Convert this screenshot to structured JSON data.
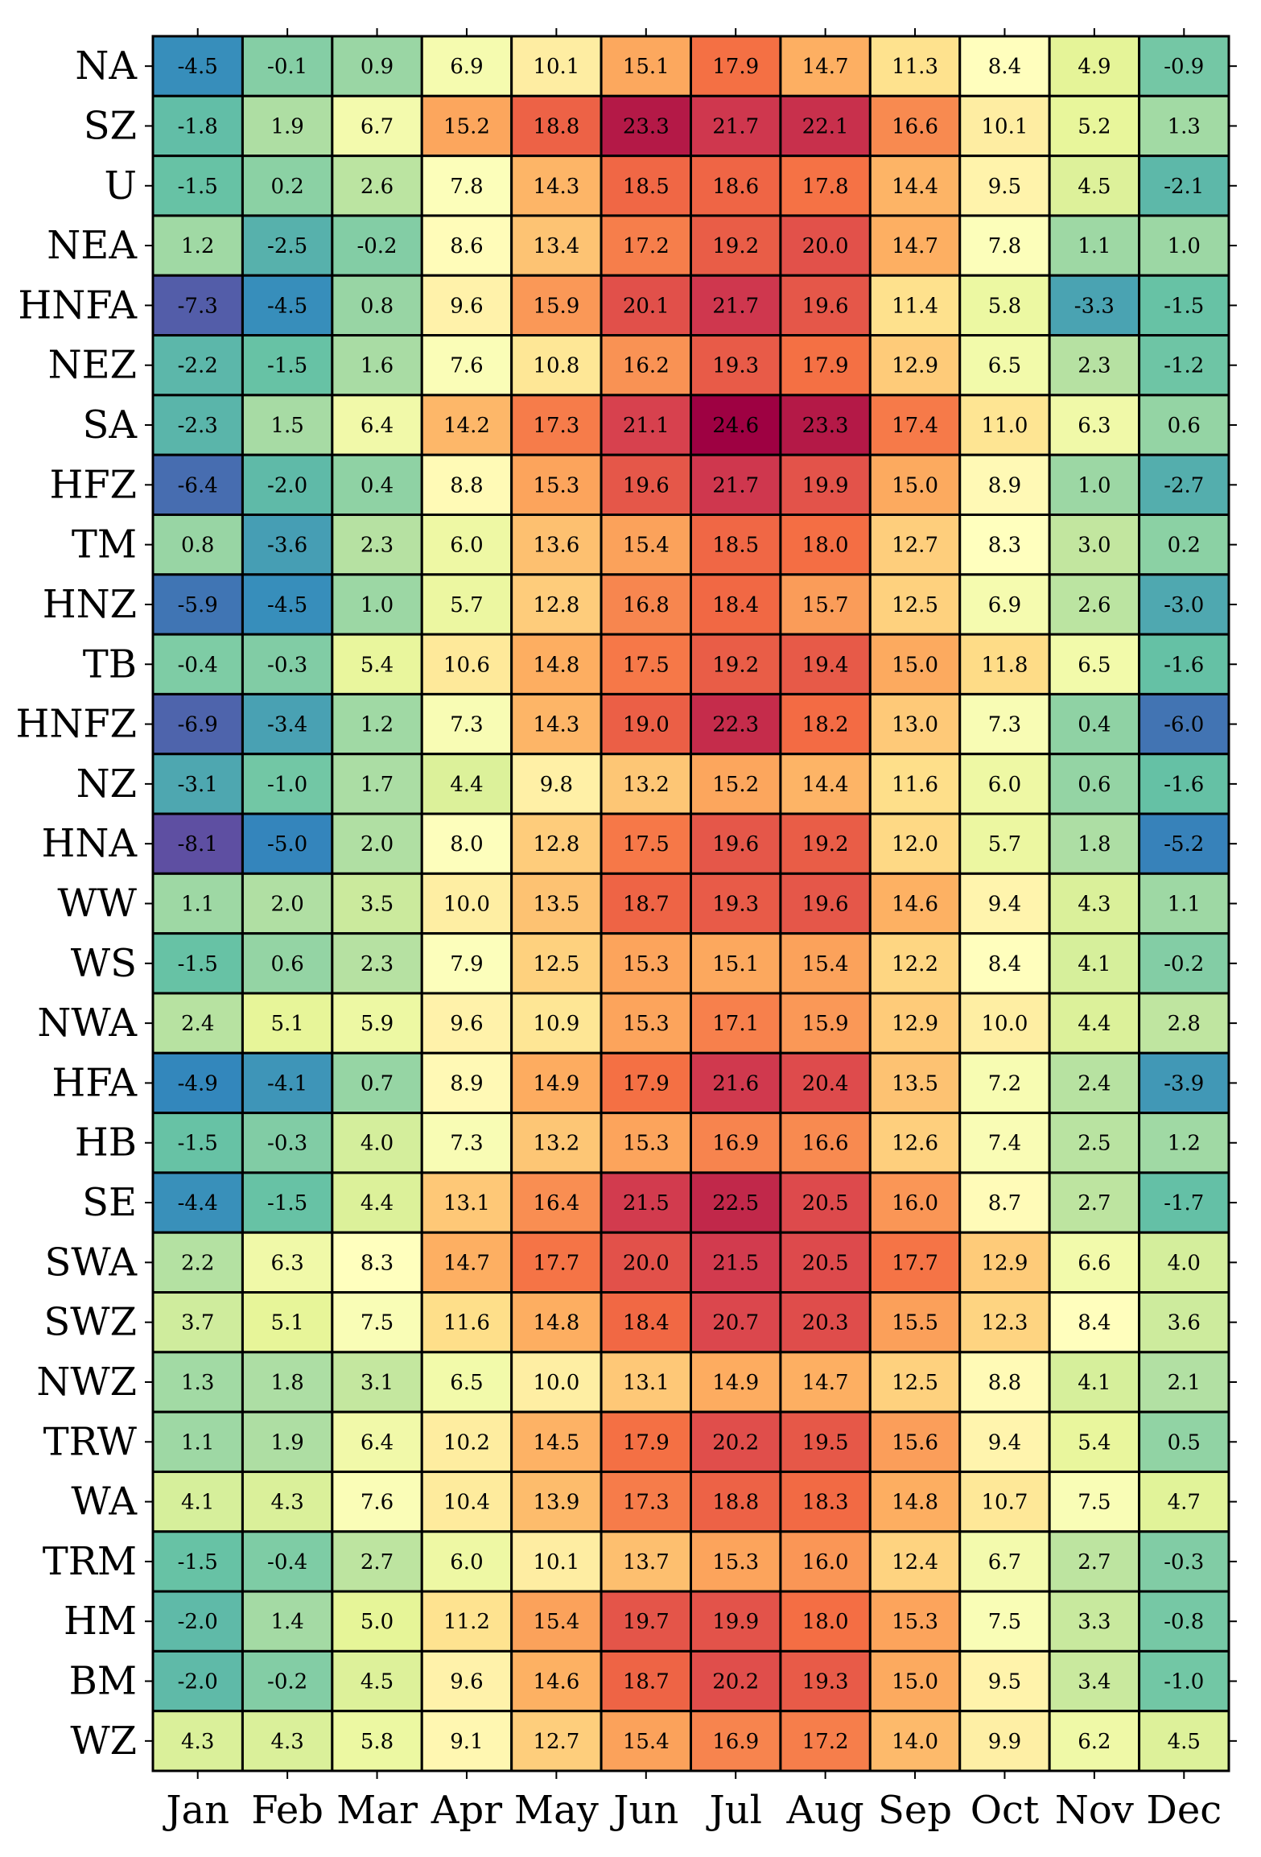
{
  "chart_data": {
    "type": "heatmap",
    "columns": [
      "Jan",
      "Feb",
      "Mar",
      "Apr",
      "May",
      "Jun",
      "Jul",
      "Aug",
      "Sep",
      "Oct",
      "Nov",
      "Dec"
    ],
    "rows": [
      "NA",
      "SZ",
      "U",
      "NEA",
      "HNFA",
      "NEZ",
      "SA",
      "HFZ",
      "TM",
      "HNZ",
      "TB",
      "HNFZ",
      "NZ",
      "HNA",
      "WW",
      "WS",
      "NWA",
      "HFA",
      "HB",
      "SE",
      "SWA",
      "SWZ",
      "NWZ",
      "TRW",
      "WA",
      "TRM",
      "HM",
      "BM",
      "WZ"
    ],
    "values": [
      [
        -4.5,
        -0.1,
        0.9,
        6.9,
        10.1,
        15.1,
        17.9,
        14.7,
        11.3,
        8.4,
        4.9,
        -0.9
      ],
      [
        -1.8,
        1.9,
        6.7,
        15.2,
        18.8,
        23.3,
        21.7,
        22.1,
        16.6,
        10.1,
        5.2,
        1.3
      ],
      [
        -1.5,
        0.2,
        2.6,
        7.8,
        14.3,
        18.5,
        18.6,
        17.8,
        14.4,
        9.5,
        4.5,
        -2.1
      ],
      [
        1.2,
        -2.5,
        -0.2,
        8.6,
        13.4,
        17.2,
        19.2,
        20.0,
        14.7,
        7.8,
        1.1,
        1.0
      ],
      [
        -7.3,
        -4.5,
        0.8,
        9.6,
        15.9,
        20.1,
        21.7,
        19.6,
        11.4,
        5.8,
        -3.3,
        -1.5
      ],
      [
        -2.2,
        -1.5,
        1.6,
        7.6,
        10.8,
        16.2,
        19.3,
        17.9,
        12.9,
        6.5,
        2.3,
        -1.2
      ],
      [
        -2.3,
        1.5,
        6.4,
        14.2,
        17.3,
        21.1,
        24.6,
        23.3,
        17.4,
        11.0,
        6.3,
        0.6
      ],
      [
        -6.4,
        -2.0,
        0.4,
        8.8,
        15.3,
        19.6,
        21.7,
        19.9,
        15.0,
        8.9,
        1.0,
        -2.7
      ],
      [
        0.8,
        -3.6,
        2.3,
        6.0,
        13.6,
        15.4,
        18.5,
        18.0,
        12.7,
        8.3,
        3.0,
        0.2
      ],
      [
        -5.9,
        -4.5,
        1.0,
        5.7,
        12.8,
        16.8,
        18.4,
        15.7,
        12.5,
        6.9,
        2.6,
        -3.0
      ],
      [
        -0.4,
        -0.3,
        5.4,
        10.6,
        14.8,
        17.5,
        19.2,
        19.4,
        15.0,
        11.8,
        6.5,
        -1.6
      ],
      [
        -6.9,
        -3.4,
        1.2,
        7.3,
        14.3,
        19.0,
        22.3,
        18.2,
        13.0,
        7.3,
        0.4,
        -6.0
      ],
      [
        -3.1,
        -1.0,
        1.7,
        4.4,
        9.8,
        13.2,
        15.2,
        14.4,
        11.6,
        6.0,
        0.6,
        -1.6
      ],
      [
        -8.1,
        -5.0,
        2.0,
        8.0,
        12.8,
        17.5,
        19.6,
        19.2,
        12.0,
        5.7,
        1.8,
        -5.2
      ],
      [
        1.1,
        2.0,
        3.5,
        10.0,
        13.5,
        18.7,
        19.3,
        19.6,
        14.6,
        9.4,
        4.3,
        1.1
      ],
      [
        -1.5,
        0.6,
        2.3,
        7.9,
        12.5,
        15.3,
        15.1,
        15.4,
        12.2,
        8.4,
        4.1,
        -0.2
      ],
      [
        2.4,
        5.1,
        5.9,
        9.6,
        10.9,
        15.3,
        17.1,
        15.9,
        12.9,
        10.0,
        4.4,
        2.8
      ],
      [
        -4.9,
        -4.1,
        0.7,
        8.9,
        14.9,
        17.9,
        21.6,
        20.4,
        13.5,
        7.2,
        2.4,
        -3.9
      ],
      [
        -1.5,
        -0.3,
        4.0,
        7.3,
        13.2,
        15.3,
        16.9,
        16.6,
        12.6,
        7.4,
        2.5,
        1.2
      ],
      [
        -4.4,
        -1.5,
        4.4,
        13.1,
        16.4,
        21.5,
        22.5,
        20.5,
        16.0,
        8.7,
        2.7,
        -1.7
      ],
      [
        2.2,
        6.3,
        8.3,
        14.7,
        17.7,
        20.0,
        21.5,
        20.5,
        17.7,
        12.9,
        6.6,
        4.0
      ],
      [
        3.7,
        5.1,
        7.5,
        11.6,
        14.8,
        18.4,
        20.7,
        20.3,
        15.5,
        12.3,
        8.4,
        3.6
      ],
      [
        1.3,
        1.8,
        3.1,
        6.5,
        10.0,
        13.1,
        14.9,
        14.7,
        12.5,
        8.8,
        4.1,
        2.1
      ],
      [
        1.1,
        1.9,
        6.4,
        10.2,
        14.5,
        17.9,
        20.2,
        19.5,
        15.6,
        9.4,
        5.4,
        0.5
      ],
      [
        4.1,
        4.3,
        7.6,
        10.4,
        13.9,
        17.3,
        18.8,
        18.3,
        14.8,
        10.7,
        7.5,
        4.7
      ],
      [
        -1.5,
        -0.4,
        2.7,
        6.0,
        10.1,
        13.7,
        15.3,
        16.0,
        12.4,
        6.7,
        2.7,
        -0.3
      ],
      [
        -2.0,
        1.4,
        5.0,
        11.2,
        15.4,
        19.7,
        19.9,
        18.0,
        15.3,
        7.5,
        3.3,
        -0.8
      ],
      [
        -2.0,
        -0.2,
        4.5,
        9.6,
        14.6,
        18.7,
        20.2,
        19.3,
        15.0,
        9.5,
        3.4,
        -1.0
      ],
      [
        4.3,
        4.3,
        5.8,
        9.1,
        12.7,
        15.4,
        16.9,
        17.2,
        14.0,
        9.9,
        6.2,
        4.5
      ]
    ],
    "colormap": "Spectral_r",
    "color_range": [
      -8.1,
      24.6
    ],
    "grid": true,
    "legend": "none"
  }
}
